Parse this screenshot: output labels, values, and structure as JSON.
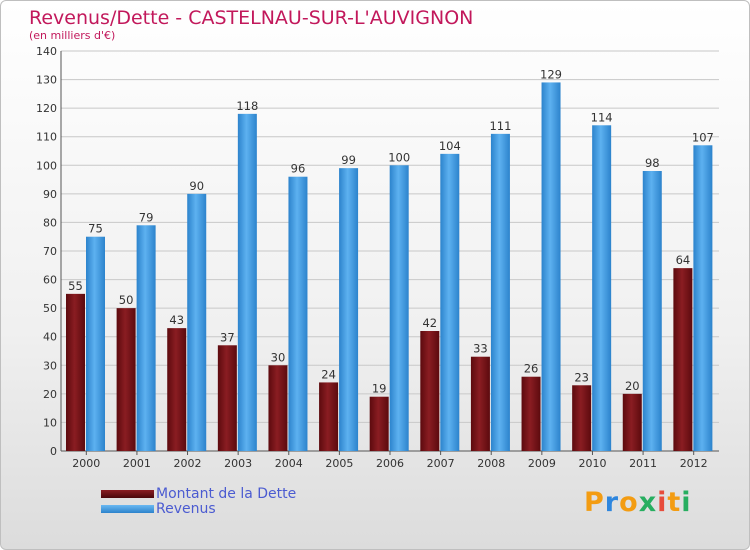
{
  "title": "Revenus/Dette - CASTELNAU-SUR-L'AUVIGNON",
  "subtitle": "(en milliers d'€)",
  "brand": {
    "letters": [
      "P",
      "r",
      "o",
      "x",
      "i",
      "t",
      "i"
    ],
    "colors": [
      "#f39c12",
      "#2e86de",
      "#f39c12",
      "#27ae60",
      "#e74c3c",
      "#f39c12",
      "#27ae60"
    ]
  },
  "colors": {
    "dette": "#7b0f14",
    "revenus": "#4a9fe3",
    "title": "#c2185b"
  },
  "chart_data": {
    "type": "bar",
    "title": "Revenus/Dette - CASTELNAU-SUR-L'AUVIGNON",
    "ylabel": "(en milliers d'€)",
    "categories": [
      "2000",
      "2001",
      "2002",
      "2003",
      "2004",
      "2005",
      "2006",
      "2007",
      "2008",
      "2009",
      "2010",
      "2011",
      "2012"
    ],
    "series": [
      {
        "name": "Montant de la Dette",
        "values": [
          55,
          50,
          43,
          37,
          30,
          24,
          19,
          42,
          33,
          26,
          23,
          20,
          64
        ]
      },
      {
        "name": "Revenus",
        "values": [
          75,
          79,
          90,
          118,
          96,
          99,
          100,
          104,
          111,
          129,
          114,
          98,
          107
        ]
      }
    ],
    "ylim": [
      0,
      140
    ],
    "yticks": [
      0,
      10,
      20,
      30,
      40,
      50,
      60,
      70,
      80,
      90,
      100,
      110,
      120,
      130,
      140
    ],
    "grid": true,
    "legend_position": "bottom-left"
  }
}
